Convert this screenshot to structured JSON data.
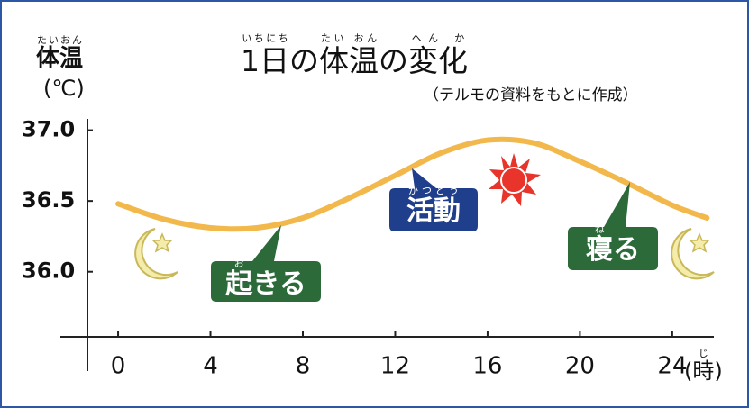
{
  "chart_data": {
    "type": "line",
    "title": [
      {
        "text": "1日",
        "ruby": "いちにち"
      },
      {
        "text": "の"
      },
      {
        "text": "体温",
        "ruby": "たい おん"
      },
      {
        "text": "の"
      },
      {
        "text": "変化",
        "ruby": "へん か"
      }
    ],
    "subtitle": "（テルモの資料をもとに作成）",
    "y_label": [
      {
        "text": "体温",
        "ruby": "たいおん"
      }
    ],
    "y_unit": "(℃)",
    "x_unit": [
      {
        "text": "(時)",
        "ruby": "じ"
      }
    ],
    "x": [
      0,
      2,
      4,
      6,
      8,
      10,
      12,
      14,
      16,
      18,
      20,
      22,
      24,
      25.5
    ],
    "values": [
      36.48,
      36.37,
      36.31,
      36.31,
      36.38,
      36.52,
      36.68,
      36.84,
      36.93,
      36.91,
      36.78,
      36.63,
      36.47,
      36.38
    ],
    "color": "#f2b84b",
    "xlim": [
      -2.5,
      25.8
    ],
    "xticks": [
      0,
      4,
      8,
      12,
      16,
      20,
      24
    ],
    "ylim": [
      35.54,
      37.08
    ],
    "yticks": [
      {
        "value": 37,
        "label": "37.0"
      },
      {
        "value": 36.5,
        "label": "36.5"
      },
      {
        "value": 36,
        "label": "36.0"
      }
    ],
    "annotations": [
      {
        "text": [
          {
            "text": "起",
            "ruby": "お"
          },
          {
            "text": "きる"
          }
        ],
        "color": "#2c6a3a"
      },
      {
        "text": [
          {
            "text": "活動",
            "ruby": "かつどう"
          }
        ],
        "color": "#1f3f8c"
      },
      {
        "text": [
          {
            "text": "寝",
            "ruby": "ね"
          },
          {
            "text": "る"
          }
        ],
        "color": "#2c6a3a"
      }
    ]
  }
}
